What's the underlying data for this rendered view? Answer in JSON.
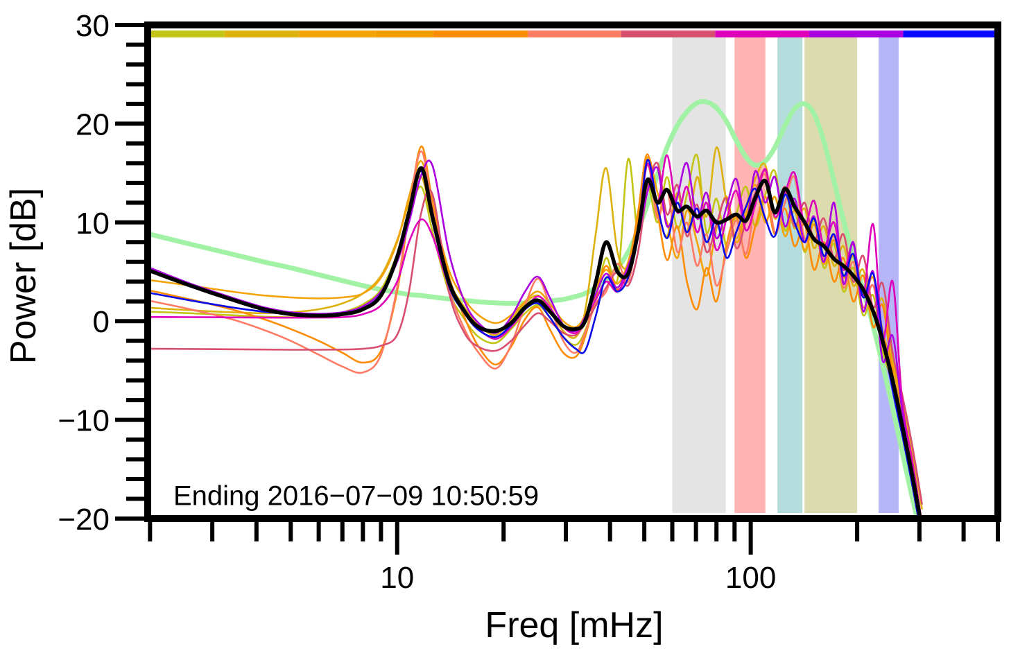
{
  "chart_data": {
    "type": "line",
    "title": "",
    "xlabel": "Freq [mHz]",
    "ylabel": "Power [dB]",
    "annotation": "Ending 2016−07−09 10:50:59",
    "x_scale": "log",
    "x_range": [
      1.97,
      500
    ],
    "y_range": [
      -20,
      30
    ],
    "grid": false,
    "x_major_ticks": [
      {
        "f": 10,
        "label": "10"
      },
      {
        "f": 100,
        "label": "100"
      }
    ],
    "x_minor_ticks": [
      2,
      3,
      4,
      5,
      6,
      7,
      8,
      9,
      20,
      30,
      40,
      50,
      60,
      70,
      80,
      90,
      200,
      300,
      400,
      500
    ],
    "y_major_ticks": [
      {
        "v": 30,
        "label": "30"
      },
      {
        "v": 20,
        "label": "20"
      },
      {
        "v": 10,
        "label": "10"
      },
      {
        "v": 0,
        "label": "0"
      },
      {
        "v": -10,
        "label": "−10"
      },
      {
        "v": -20,
        "label": "−20"
      }
    ],
    "y_minor_ticks": [
      28,
      26,
      24,
      22,
      18,
      16,
      14,
      12,
      8,
      6,
      4,
      2,
      -2,
      -4,
      -6,
      -8,
      -12,
      -14,
      -16,
      -18
    ],
    "bands": [
      {
        "name": "band-gray",
        "f_from": 60,
        "f_to": 85,
        "color": "#e4e4e4"
      },
      {
        "name": "band-pink",
        "f_from": 90,
        "f_to": 110,
        "color": "#ffb3b3"
      },
      {
        "name": "band-teal",
        "f_from": 119,
        "f_to": 140,
        "color": "#b5dcdc"
      },
      {
        "name": "band-olive",
        "f_from": 142,
        "f_to": 200,
        "color": "#dbdbae"
      },
      {
        "name": "band-lavender",
        "f_from": 230,
        "f_to": 262,
        "color": "#b5b5f7"
      }
    ],
    "colorbar": {
      "segments": [
        {
          "from": 0.0,
          "to": 0.089,
          "color": "#c3c514"
        },
        {
          "from": 0.089,
          "to": 0.177,
          "color": "#dcb40c"
        },
        {
          "from": 0.177,
          "to": 0.267,
          "color": "#f2a306"
        },
        {
          "from": 0.267,
          "to": 0.335,
          "color": "#f09d02"
        },
        {
          "from": 0.335,
          "to": 0.447,
          "color": "#ff8c05"
        },
        {
          "from": 0.447,
          "to": 0.557,
          "color": "#ff7b64"
        },
        {
          "from": 0.557,
          "to": 0.668,
          "color": "#d94f70"
        },
        {
          "from": 0.668,
          "to": 0.779,
          "color": "#df00bb"
        },
        {
          "from": 0.779,
          "to": 0.89,
          "color": "#ab00e0"
        },
        {
          "from": 0.89,
          "to": 1.0,
          "color": "#0909ff"
        }
      ]
    },
    "frequencies": [
      2,
      2.6,
      3.4,
      4.2,
      5,
      6,
      7,
      8,
      9,
      10,
      10.8,
      11.7,
      12.6,
      14,
      15.5,
      17,
      19,
      21,
      23,
      25,
      27,
      29.5,
      32,
      34,
      36.5,
      39,
      42,
      45,
      48,
      51,
      54.5,
      58,
      62,
      66,
      70.5,
      75,
      80,
      85.5,
      91,
      97,
      103,
      110,
      117,
      125,
      133,
      142,
      151,
      161,
      172,
      183,
      195,
      208,
      222,
      236,
      252,
      268,
      286,
      305
    ],
    "series": [
      {
        "name": "smoothed-background",
        "color": "#a2f2a6",
        "width": 7,
        "values": [
          8.8,
          7.8,
          6.8,
          6.0,
          5.4,
          4.7,
          4.1,
          3.6,
          3.2,
          2.9,
          2.7,
          2.6,
          2.45,
          2.25,
          2.1,
          1.95,
          1.85,
          1.8,
          1.85,
          1.95,
          2.05,
          2.2,
          2.5,
          2.8,
          3.4,
          4.2,
          5.4,
          7.0,
          9.2,
          11.8,
          14.8,
          17.6,
          19.8,
          21.2,
          22.1,
          22.2,
          21.6,
          20.2,
          18.3,
          16.6,
          15.8,
          16.2,
          17.6,
          19.8,
          21.5,
          22.0,
          21.0,
          18.2,
          14.2,
          10.2,
          6.6,
          3.2,
          -0.5,
          -4.4,
          -8.8,
          -13.2,
          -17.8,
          -22.0
        ]
      },
      {
        "name": "segment-01-yellow-green",
        "color": "#c3c514",
        "width": 2.6,
        "values": [
          0.95,
          0.8,
          0.6,
          0.45,
          0.4,
          0.5,
          0.9,
          1.7,
          3.2,
          6.8,
          10.8,
          13.6,
          9.0,
          3.0,
          0.2,
          -1.6,
          -2.2,
          -0.8,
          0.8,
          1.6,
          0.4,
          -1.6,
          -2.4,
          -1.0,
          2.4,
          6.4,
          4.2,
          16.4,
          9.0,
          13.8,
          10.0,
          14.6,
          9.4,
          12.8,
          16.8,
          9.0,
          12.4,
          7.6,
          10.8,
          13.6,
          9.6,
          12.8,
          15.2,
          9.2,
          12.0,
          7.0,
          10.2,
          5.4,
          7.8,
          3.0,
          5.4,
          0.6,
          2.6,
          -3.0,
          -6.4,
          -11.0,
          -16.0,
          -21.5
        ]
      },
      {
        "name": "segment-02-gold",
        "color": "#ddb10e",
        "width": 2.6,
        "values": [
          1.35,
          1.1,
          0.9,
          0.8,
          0.9,
          1.2,
          1.8,
          2.8,
          4.6,
          8.2,
          12.0,
          14.6,
          10.0,
          4.2,
          1.4,
          -0.4,
          -1.4,
          0.2,
          1.8,
          2.6,
          1.2,
          -1.0,
          -1.6,
          1.0,
          9.0,
          15.5,
          7.0,
          5.6,
          11.0,
          15.8,
          11.4,
          8.6,
          13.0,
          9.0,
          14.6,
          10.6,
          17.6,
          12.0,
          8.4,
          11.6,
          14.4,
          15.8,
          10.4,
          13.2,
          9.4,
          11.4,
          7.4,
          9.6,
          5.6,
          7.6,
          3.6,
          5.2,
          0.6,
          2.2,
          -4.0,
          -8.0,
          -13.0,
          -19.0
        ]
      },
      {
        "name": "segment-03-orange-gold",
        "color": "#f2a306",
        "width": 2.6,
        "values": [
          4.15,
          3.6,
          3.0,
          2.6,
          2.4,
          2.3,
          2.4,
          2.8,
          4.4,
          8.0,
          12.6,
          16.2,
          11.4,
          5.2,
          2.2,
          0.6,
          -0.2,
          0.6,
          2.0,
          3.0,
          1.8,
          0.0,
          -0.6,
          0.6,
          3.4,
          5.2,
          3.8,
          6.0,
          10.4,
          16.6,
          13.0,
          10.0,
          6.4,
          11.2,
          8.0,
          4.6,
          9.4,
          12.6,
          8.0,
          10.8,
          13.8,
          10.0,
          12.6,
          8.6,
          11.2,
          7.2,
          9.8,
          5.8,
          8.2,
          4.4,
          6.6,
          2.4,
          4.4,
          -1.0,
          -4.6,
          -9.0,
          -14.0,
          -20.5
        ]
      },
      {
        "name": "segment-04-orange",
        "color": "#ff8c05",
        "width": 2.6,
        "values": [
          3.1,
          2.2,
          1.2,
          0.2,
          -0.8,
          -2.0,
          -3.2,
          -4.2,
          -3.0,
          3.0,
          11.0,
          17.7,
          12.0,
          4.6,
          0.4,
          -2.6,
          -4.4,
          -2.6,
          0.2,
          1.4,
          -0.8,
          -3.2,
          -3.6,
          -1.6,
          2.6,
          5.6,
          3.2,
          5.4,
          11.0,
          16.9,
          11.0,
          6.2,
          9.6,
          4.0,
          1.2,
          5.4,
          2.0,
          7.8,
          10.6,
          6.4,
          9.6,
          12.6,
          8.8,
          11.4,
          7.6,
          9.8,
          5.2,
          8.0,
          4.0,
          6.4,
          2.0,
          4.6,
          -0.6,
          1.6,
          -5.4,
          -9.6,
          -15.0,
          -21.0
        ]
      },
      {
        "name": "segment-05-salmon",
        "color": "#ff7b64",
        "width": 2.6,
        "values": [
          2.05,
          1.2,
          0.2,
          -0.9,
          -2.0,
          -3.4,
          -4.6,
          -5.2,
          -3.4,
          3.4,
          11.4,
          17.2,
          11.2,
          3.4,
          -0.8,
          -3.2,
          -4.8,
          -2.4,
          1.6,
          4.3,
          1.6,
          -2.0,
          -3.2,
          -1.2,
          1.8,
          3.0,
          5.8,
          4.0,
          9.4,
          16.0,
          10.4,
          13.4,
          7.0,
          10.0,
          5.6,
          8.8,
          3.6,
          7.0,
          10.2,
          6.8,
          12.2,
          14.8,
          9.0,
          12.0,
          14.6,
          8.4,
          10.6,
          6.2,
          8.6,
          3.4,
          6.0,
          1.4,
          3.6,
          -2.2,
          -6.2,
          -11.0,
          -16.5,
          -22.0
        ]
      },
      {
        "name": "segment-06-rose",
        "color": "#d94f70",
        "width": 2.6,
        "values": [
          -2.8,
          -2.82,
          -2.85,
          -2.88,
          -2.9,
          -2.9,
          -2.88,
          -2.8,
          -2.5,
          -1.4,
          3.0,
          11.0,
          12.8,
          3.0,
          -1.2,
          -2.6,
          -3.0,
          -2.0,
          -0.4,
          0.8,
          0.0,
          -1.2,
          -1.4,
          -0.2,
          1.6,
          3.4,
          5.0,
          3.6,
          7.0,
          13.2,
          16.0,
          10.8,
          13.8,
          8.6,
          11.8,
          7.0,
          9.8,
          12.4,
          7.4,
          10.2,
          13.0,
          15.2,
          11.0,
          13.6,
          9.6,
          12.0,
          8.2,
          10.4,
          6.4,
          8.8,
          4.0,
          6.6,
          1.4,
          3.8,
          -3.2,
          -7.4,
          -12.5,
          -18.5
        ]
      },
      {
        "name": "segment-07-magenta",
        "color": "#df00bb",
        "width": 2.6,
        "values": [
          0.42,
          0.4,
          0.38,
          0.36,
          0.35,
          0.36,
          0.4,
          0.7,
          1.6,
          4.0,
          8.0,
          10.3,
          8.6,
          3.6,
          0.8,
          -0.8,
          -1.8,
          -0.6,
          1.2,
          2.5,
          1.4,
          -0.6,
          -1.2,
          0.2,
          2.2,
          4.0,
          3.0,
          5.2,
          9.0,
          15.9,
          12.0,
          16.8,
          11.0,
          13.6,
          9.0,
          12.0,
          7.2,
          10.4,
          13.2,
          9.2,
          11.8,
          15.4,
          10.6,
          13.0,
          15.0,
          9.8,
          12.2,
          7.6,
          10.0,
          5.2,
          7.8,
          2.6,
          9.8,
          -1.8,
          4.0,
          -8.0,
          -14.0,
          -20.5
        ]
      },
      {
        "name": "segment-08-purple",
        "color": "#ab00e0",
        "width": 2.6,
        "values": [
          5.4,
          3.8,
          2.4,
          1.4,
          0.9,
          0.75,
          0.9,
          1.5,
          3.0,
          6.0,
          10.0,
          14.8,
          15.7,
          7.0,
          2.0,
          -0.2,
          -1.2,
          0.4,
          3.0,
          4.5,
          2.4,
          -0.4,
          -1.0,
          0.4,
          2.8,
          4.8,
          3.4,
          5.6,
          8.6,
          13.0,
          15.5,
          9.6,
          12.6,
          16.0,
          10.4,
          13.0,
          8.4,
          11.6,
          14.4,
          10.0,
          15.2,
          12.0,
          14.6,
          9.6,
          12.4,
          8.0,
          10.6,
          6.0,
          12.0,
          3.8,
          8.0,
          1.0,
          5.0,
          -4.0,
          -1.5,
          -9.0,
          -15.5,
          -21.5
        ]
      },
      {
        "name": "segment-09-blue",
        "color": "#0a0ae6",
        "width": 2.6,
        "values": [
          2.85,
          2.1,
          1.4,
          0.95,
          0.7,
          0.62,
          0.75,
          1.3,
          2.8,
          6.6,
          11.2,
          15.2,
          10.0,
          3.6,
          0.8,
          -0.9,
          -1.6,
          -0.4,
          1.2,
          1.8,
          0.4,
          -1.6,
          -2.8,
          -3.0,
          0.6,
          4.4,
          3.0,
          4.4,
          8.6,
          16.3,
          11.6,
          8.4,
          12.0,
          9.0,
          11.4,
          8.0,
          10.2,
          6.4,
          9.0,
          11.6,
          13.4,
          10.4,
          8.6,
          12.8,
          10.0,
          8.0,
          10.4,
          6.6,
          8.8,
          4.6,
          6.8,
          2.4,
          4.8,
          -1.4,
          -7.0,
          -11.5,
          -16.5,
          -22.0
        ]
      },
      {
        "name": "mean-spectrum",
        "color": "#000000",
        "width": 5.5,
        "values": [
          5.1,
          3.6,
          2.2,
          1.2,
          0.7,
          0.55,
          0.7,
          1.2,
          2.6,
          6.5,
          11.0,
          15.5,
          10.5,
          4.0,
          1.0,
          -0.6,
          -1.0,
          -0.2,
          1.4,
          2.1,
          1.0,
          -0.5,
          -0.8,
          0.0,
          4.0,
          8.0,
          5.0,
          4.8,
          9.0,
          14.3,
          12.0,
          13.3,
          11.2,
          11.6,
          10.6,
          11.2,
          10.0,
          10.3,
          10.8,
          10.2,
          12.5,
          14.2,
          11.0,
          13.4,
          11.6,
          10.0,
          8.3,
          7.6,
          6.3,
          5.6,
          4.6,
          3.2,
          1.0,
          -2.0,
          -6.0,
          -10.5,
          -15.5,
          -21.0
        ]
      }
    ]
  }
}
